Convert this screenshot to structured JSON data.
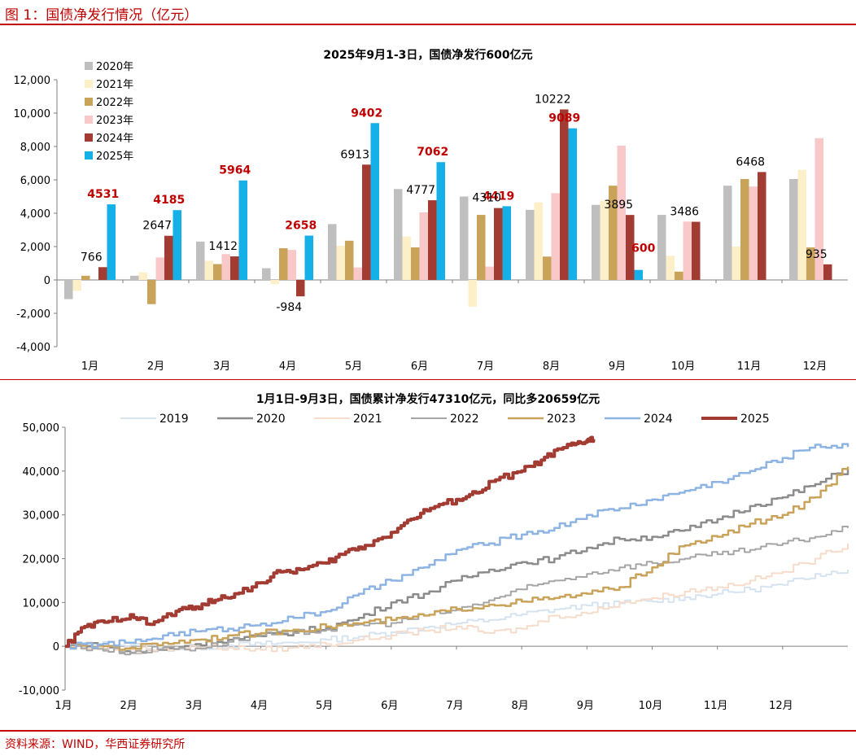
{
  "figure_title": "图 1：国债净发行情况（亿元）",
  "source": "资料来源：WIND，华西证券研究所",
  "colors": {
    "rule": "#c00000",
    "y2020": "#bfbfbf",
    "y2021": "#fdefc8",
    "y2022": "#c9a35a",
    "y2023": "#f9c9c9",
    "y2024": "#a23b32",
    "y2025": "#15b0e8",
    "label_highlight": "#c00000"
  },
  "chart_data": [
    {
      "type": "bar",
      "title": "2025年9月1-3日，国债净发行600亿元",
      "categories": [
        "1月",
        "2月",
        "3月",
        "4月",
        "5月",
        "6月",
        "7月",
        "8月",
        "9月",
        "10月",
        "11月",
        "12月"
      ],
      "ylim": [
        -4000,
        12000
      ],
      "yticks": [
        "-4,000",
        "-2,000",
        "0",
        "2,000",
        "4,000",
        "6,000",
        "8,000",
        "10,000",
        "12,000"
      ],
      "grid": false,
      "legend_position": "top-left",
      "series": [
        {
          "name": "2020年",
          "color": "#bfbfbf",
          "values": [
            -1150,
            250,
            2300,
            700,
            3350,
            5450,
            5000,
            4200,
            4500,
            3900,
            5650,
            6050
          ]
        },
        {
          "name": "2021年",
          "color": "#fdefc8",
          "values": [
            -650,
            450,
            1150,
            -250,
            2050,
            2600,
            -1600,
            4650,
            4750,
            1450,
            2000,
            6600
          ]
        },
        {
          "name": "2022年",
          "color": "#c9a35a",
          "values": [
            250,
            -1450,
            950,
            1900,
            2350,
            1950,
            3900,
            1400,
            5650,
            500,
            6050,
            1950
          ]
        },
        {
          "name": "2023年",
          "color": "#f9c9c9",
          "values": [
            0,
            1350,
            1550,
            1800,
            750,
            4050,
            800,
            5200,
            8050,
            3500,
            5600,
            8500
          ]
        },
        {
          "name": "2024年",
          "color": "#a23b32",
          "values": [
            766,
            2647,
            1412,
            -984,
            6913,
            4777,
            4310,
            10222,
            3895,
            3486,
            6468,
            935
          ]
        },
        {
          "name": "2025年",
          "color": "#15b0e8",
          "values": [
            4531,
            4185,
            5964,
            2658,
            9402,
            7062,
            4419,
            9089,
            600,
            null,
            null,
            null
          ]
        }
      ],
      "labels": [
        {
          "text": "4531",
          "series": 5,
          "cat": 0,
          "highlight": true
        },
        {
          "text": "766",
          "series": 4,
          "cat": 0,
          "highlight": false
        },
        {
          "text": "4185",
          "series": 5,
          "cat": 1,
          "highlight": true
        },
        {
          "text": "2647",
          "series": 4,
          "cat": 1,
          "highlight": false
        },
        {
          "text": "5964",
          "series": 5,
          "cat": 2,
          "highlight": true
        },
        {
          "text": "1412",
          "series": 4,
          "cat": 2,
          "highlight": false
        },
        {
          "text": "2658",
          "series": 5,
          "cat": 3,
          "highlight": true
        },
        {
          "text": "-984",
          "series": 4,
          "cat": 3,
          "highlight": false
        },
        {
          "text": "9402",
          "series": 5,
          "cat": 4,
          "highlight": true
        },
        {
          "text": "6913",
          "series": 4,
          "cat": 4,
          "highlight": false
        },
        {
          "text": "7062",
          "series": 5,
          "cat": 5,
          "highlight": true
        },
        {
          "text": "4777",
          "series": 4,
          "cat": 5,
          "highlight": false
        },
        {
          "text": "4419",
          "series": 5,
          "cat": 6,
          "highlight": true
        },
        {
          "text": "4310",
          "series": 4,
          "cat": 6,
          "highlight": false
        },
        {
          "text": "9089",
          "series": 5,
          "cat": 7,
          "highlight": true
        },
        {
          "text": "10222",
          "series": 4,
          "cat": 7,
          "highlight": false
        },
        {
          "text": "600",
          "series": 5,
          "cat": 8,
          "highlight": true
        },
        {
          "text": "3895",
          "series": 4,
          "cat": 8,
          "highlight": false
        },
        {
          "text": "3486",
          "series": 4,
          "cat": 9,
          "highlight": false
        },
        {
          "text": "6468",
          "series": 4,
          "cat": 10,
          "highlight": false
        },
        {
          "text": "935",
          "series": 4,
          "cat": 11,
          "highlight": false
        }
      ]
    },
    {
      "type": "line",
      "title": "1月1日-9月3日，国债累计净发行47310亿元，同比多20659亿元",
      "x_ticks": [
        "1月",
        "2月",
        "3月",
        "4月",
        "5月",
        "6月",
        "7月",
        "8月",
        "9月",
        "10月",
        "11月",
        "12月"
      ],
      "ylim": [
        -10000,
        50000
      ],
      "yticks": [
        "-10,000",
        "0",
        "10,000",
        "20,000",
        "30,000",
        "40,000",
        "50,000"
      ],
      "grid": false,
      "legend_position": "top",
      "series": [
        {
          "name": "2019",
          "color": "#d6e4f2",
          "width": 2,
          "points": [
            [
              0,
              0
            ],
            [
              0.5,
              500
            ],
            [
              1,
              300
            ],
            [
              1.5,
              -500
            ],
            [
              2,
              -300
            ],
            [
              2.5,
              200
            ],
            [
              3,
              500
            ],
            [
              3.5,
              800
            ],
            [
              4,
              1500
            ],
            [
              4.5,
              2200
            ],
            [
              5,
              3200
            ],
            [
              5.5,
              4300
            ],
            [
              6,
              5200
            ],
            [
              6.5,
              6000
            ],
            [
              7,
              7300
            ],
            [
              7.5,
              8400
            ],
            [
              8,
              9300
            ],
            [
              8.5,
              9800
            ],
            [
              9,
              10200
            ],
            [
              9.5,
              11200
            ],
            [
              10,
              12000
            ],
            [
              10.5,
              13000
            ],
            [
              11,
              14000
            ],
            [
              11.5,
              16500
            ],
            [
              12,
              17500
            ]
          ]
        },
        {
          "name": "2020",
          "color": "#8c8c8c",
          "width": 2.5,
          "points": [
            [
              0,
              0
            ],
            [
              0.5,
              200
            ],
            [
              1,
              -1500
            ],
            [
              1.5,
              -800
            ],
            [
              2,
              500
            ],
            [
              2.5,
              1500
            ],
            [
              3,
              2300
            ],
            [
              3.5,
              3300
            ],
            [
              4,
              4200
            ],
            [
              4.5,
              6500
            ],
            [
              5,
              10000
            ],
            [
              5.5,
              12000
            ],
            [
              6,
              15000
            ],
            [
              6.5,
              17500
            ],
            [
              7,
              19200
            ],
            [
              7.5,
              20000
            ],
            [
              8,
              22500
            ],
            [
              8.5,
              24500
            ],
            [
              9,
              25000
            ],
            [
              9.5,
              26500
            ],
            [
              10,
              29000
            ],
            [
              10.5,
              32000
            ],
            [
              11,
              34000
            ],
            [
              11.5,
              37000
            ],
            [
              12,
              40500
            ]
          ]
        },
        {
          "name": "2021",
          "color": "#f5dccb",
          "width": 2,
          "points": [
            [
              0,
              0
            ],
            [
              0.5,
              -300
            ],
            [
              1,
              -800
            ],
            [
              1.5,
              -500
            ],
            [
              2,
              -200
            ],
            [
              2.5,
              -300
            ],
            [
              3,
              -800
            ],
            [
              3.5,
              -300
            ],
            [
              4,
              500
            ],
            [
              4.5,
              1500
            ],
            [
              5,
              2500
            ],
            [
              5.5,
              3500
            ],
            [
              6,
              4500
            ],
            [
              6.5,
              3000
            ],
            [
              7,
              4000
            ],
            [
              7.5,
              7000
            ],
            [
              8,
              7500
            ],
            [
              8.5,
              10000
            ],
            [
              9,
              11000
            ],
            [
              9.5,
              12500
            ],
            [
              10,
              13500
            ],
            [
              10.5,
              15000
            ],
            [
              11,
              17000
            ],
            [
              11.5,
              20000
            ],
            [
              12,
              23500
            ]
          ]
        },
        {
          "name": "2022",
          "color": "#a6a6a6",
          "width": 2,
          "points": [
            [
              0,
              0
            ],
            [
              0.5,
              -600
            ],
            [
              1,
              -1400
            ],
            [
              1.5,
              -300
            ],
            [
              2,
              -500
            ],
            [
              2.5,
              1000
            ],
            [
              3,
              2500
            ],
            [
              3.5,
              3000
            ],
            [
              4,
              3800
            ],
            [
              4.5,
              5000
            ],
            [
              5,
              5300
            ],
            [
              5.5,
              7000
            ],
            [
              6,
              8300
            ],
            [
              6.5,
              10500
            ],
            [
              7,
              13000
            ],
            [
              7.5,
              15000
            ],
            [
              8,
              16500
            ],
            [
              8.5,
              18000
            ],
            [
              9,
              19000
            ],
            [
              9.5,
              20000
            ],
            [
              10,
              21000
            ],
            [
              10.5,
              22000
            ],
            [
              11,
              23500
            ],
            [
              11.5,
              25000
            ],
            [
              12,
              27000
            ]
          ]
        },
        {
          "name": "2023",
          "color": "#c9a35a",
          "width": 2.5,
          "points": [
            [
              0,
              0
            ],
            [
              0.5,
              200
            ],
            [
              1,
              -400
            ],
            [
              1.5,
              800
            ],
            [
              2,
              1500
            ],
            [
              2.5,
              2500
            ],
            [
              3,
              3000
            ],
            [
              3.5,
              3800
            ],
            [
              4,
              4500
            ],
            [
              4.5,
              5200
            ],
            [
              5,
              6000
            ],
            [
              5.5,
              7000
            ],
            [
              6,
              8500
            ],
            [
              6.5,
              9500
            ],
            [
              7,
              10200
            ],
            [
              7.5,
              11000
            ],
            [
              8,
              12000
            ],
            [
              8.5,
              13500
            ],
            [
              9,
              18000
            ],
            [
              9.5,
              23000
            ],
            [
              10,
              25000
            ],
            [
              10.5,
              28000
            ],
            [
              11,
              30000
            ],
            [
              11.5,
              34000
            ],
            [
              12,
              41000
            ]
          ]
        },
        {
          "name": "2024",
          "color": "#8eb4e3",
          "width": 2.5,
          "points": [
            [
              0,
              0
            ],
            [
              0.5,
              400
            ],
            [
              1,
              800
            ],
            [
              1.5,
              2500
            ],
            [
              2,
              3400
            ],
            [
              2.5,
              4000
            ],
            [
              3,
              5200
            ],
            [
              3.5,
              6500
            ],
            [
              4,
              8000
            ],
            [
              4.5,
              12000
            ],
            [
              5,
              15000
            ],
            [
              5.5,
              18000
            ],
            [
              6,
              22000
            ],
            [
              6.5,
              23500
            ],
            [
              7,
              25500
            ],
            [
              7.5,
              27000
            ],
            [
              8,
              30000
            ],
            [
              8.5,
              31500
            ],
            [
              9,
              33500
            ],
            [
              9.5,
              35500
            ],
            [
              10,
              37500
            ],
            [
              10.5,
              40000
            ],
            [
              11,
              43000
            ],
            [
              11.5,
              46000
            ],
            [
              12,
              45500
            ]
          ]
        },
        {
          "name": "2025",
          "color": "#a23b32",
          "width": 4,
          "points": [
            [
              0,
              0
            ],
            [
              0.3,
              4500
            ],
            [
              0.6,
              5500
            ],
            [
              1,
              7200
            ],
            [
              1.3,
              5000
            ],
            [
              1.7,
              8000
            ],
            [
              2,
              9000
            ],
            [
              2.3,
              10500
            ],
            [
              2.6,
              12000
            ],
            [
              3,
              14500
            ],
            [
              3.3,
              17000
            ],
            [
              3.6,
              17500
            ],
            [
              4,
              19000
            ],
            [
              4.3,
              21500
            ],
            [
              4.6,
              23000
            ],
            [
              5,
              26000
            ],
            [
              5.3,
              29000
            ],
            [
              5.6,
              31500
            ],
            [
              6,
              33500
            ],
            [
              6.3,
              35000
            ],
            [
              6.6,
              38000
            ],
            [
              7,
              40000
            ],
            [
              7.3,
              42500
            ],
            [
              7.6,
              45000
            ],
            [
              7.8,
              46000
            ],
            [
              8,
              47000
            ],
            [
              8.1,
              47310
            ]
          ]
        }
      ]
    }
  ]
}
